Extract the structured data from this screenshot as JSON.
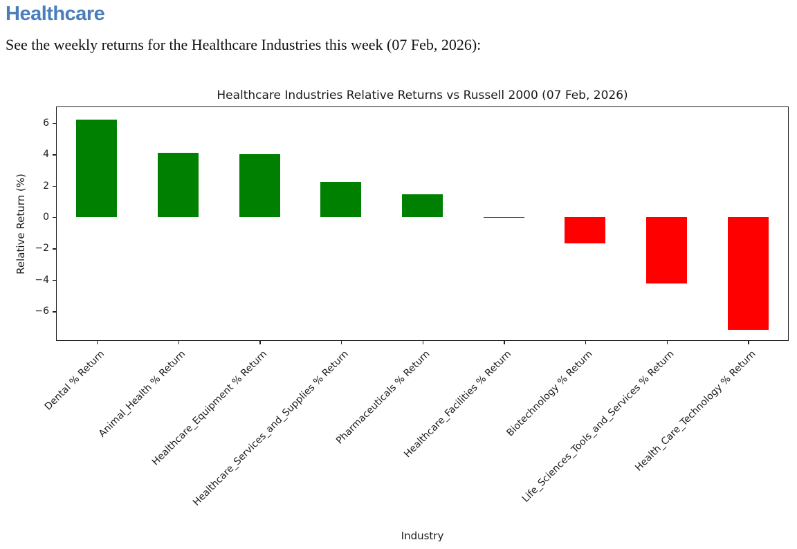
{
  "document": {
    "heading": "Healthcare",
    "intro": "See the weekly returns for the Healthcare Industries this week (07 Feb, 2026):"
  },
  "colors": {
    "heading_blue": "#4a7ebb",
    "positive_bar": "#008000",
    "negative_bar": "#ff0000"
  },
  "chart_data": {
    "type": "bar",
    "title": "Healthcare Industries Relative Returns vs Russell 2000 (07 Feb, 2026)",
    "xlabel": "Industry",
    "ylabel": "Relative Return (%)",
    "categories": [
      "Dental % Return",
      "Animal_Health % Return",
      "Healthcare_Equipment % Return",
      "Healthcare_Services_and_Supplies % Return",
      "Pharmaceuticals % Return",
      "Healthcare_Facilities % Return",
      "Biotechnology % Return",
      "Life_Sciences_Tools_and_Services % Return",
      "Health_Care_Technology % Return"
    ],
    "values": [
      6.2,
      4.1,
      4.0,
      2.25,
      1.45,
      -0.05,
      -1.7,
      -4.25,
      -7.2
    ],
    "color_rule": "green if value >= 0 else red",
    "yticks": [
      6,
      4,
      2,
      0,
      -2,
      -4,
      -6
    ],
    "ylim": [
      -7.9,
      7.05
    ],
    "x_tick_rotation": 45,
    "bar_width_fraction": 0.5,
    "grid": false,
    "legend": "none"
  }
}
